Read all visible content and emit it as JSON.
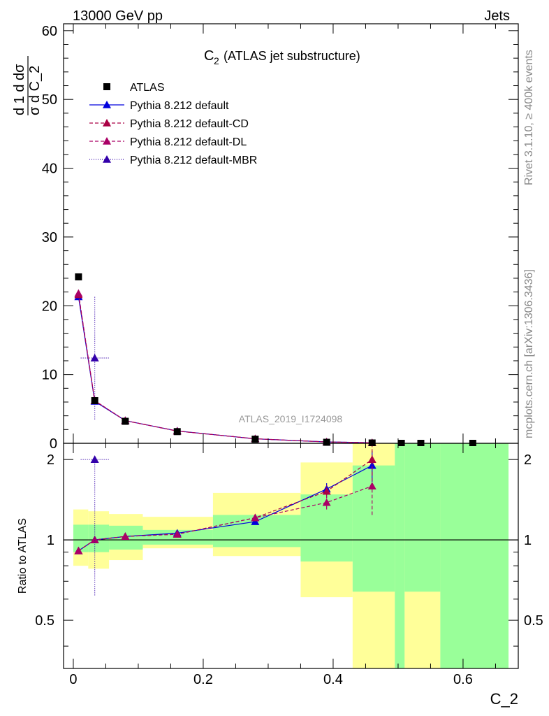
{
  "chart_data": {
    "type": "line",
    "header_left": "13000 GeV pp",
    "header_right": "Jets",
    "title_main": "C",
    "title_sub": "2",
    "title_rest": "(ATLAS jet substructure)",
    "ylabel_top": "1/σ dσ/d C_2",
    "ylabel_bottom": "Ratio to ATLAS",
    "xlabel": "C_2",
    "watermark": "ATLAS_2019_I1724098",
    "side_text_1": "Rivet 3.1.10, ≥ 400k events",
    "side_text_2": "mcplots.cern.ch [arXiv:1306.3436]",
    "xlim": [
      -0.015,
      0.685
    ],
    "ylim_top": [
      0,
      61
    ],
    "ylim_ratio": [
      0.33,
      2.3
    ],
    "x_ticks": [
      0,
      0.2,
      0.4,
      0.6
    ],
    "x_tick_labels": [
      "0",
      "0.2",
      "0.4",
      "0.6"
    ],
    "y_ticks_top": [
      0,
      10,
      20,
      30,
      40,
      50,
      60
    ],
    "y_tick_labels_top": [
      "0",
      "10",
      "20",
      "30",
      "40",
      "50",
      "60"
    ],
    "y_ticks_ratio": [
      0.5,
      1,
      2
    ],
    "y_tick_labels_ratio": [
      "0.5",
      "1",
      "2"
    ],
    "ratio_bands": [
      {
        "x0": 0.0,
        "x1": 0.023,
        "g": [
          0.9,
          1.14
        ],
        "y": [
          0.8,
          1.3
        ]
      },
      {
        "x0": 0.023,
        "x1": 0.055,
        "g": [
          0.9,
          1.14
        ],
        "y": [
          0.78,
          1.28
        ]
      },
      {
        "x0": 0.055,
        "x1": 0.107,
        "g": [
          0.92,
          1.13
        ],
        "y": [
          0.84,
          1.25
        ]
      },
      {
        "x0": 0.107,
        "x1": 0.215,
        "g": [
          0.96,
          1.09
        ],
        "y": [
          0.93,
          1.22
        ]
      },
      {
        "x0": 0.215,
        "x1": 0.35,
        "g": [
          0.94,
          1.24
        ],
        "y": [
          0.87,
          1.5
        ]
      },
      {
        "x0": 0.35,
        "x1": 0.43,
        "g": [
          0.83,
          1.48
        ],
        "y": [
          0.61,
          1.95
        ]
      },
      {
        "x0": 0.43,
        "x1": 0.495,
        "g": [
          0.64,
          1.9
        ],
        "y": [
          0.33,
          2.3
        ]
      },
      {
        "x0": 0.495,
        "x1": 0.51,
        "g": [
          0.33,
          2.3
        ],
        "y": [
          0.33,
          2.3
        ]
      },
      {
        "x0": 0.51,
        "x1": 0.565,
        "g": [
          0.64,
          2.3
        ],
        "y": [
          0.33,
          2.3
        ]
      },
      {
        "x0": 0.565,
        "x1": 0.67,
        "g": [
          0.33,
          2.3
        ],
        "y": [
          0.33,
          2.3
        ]
      }
    ],
    "data_x": [
      0.008,
      0.033,
      0.08,
      0.16,
      0.28,
      0.39,
      0.46,
      0.505,
      0.535,
      0.615
    ],
    "data_y": [
      24.2,
      6.2,
      3.2,
      1.7,
      0.6,
      0.15,
      0.05,
      0.0,
      0.0,
      0.0
    ],
    "series": [
      {
        "name": "Pythia 8.212 default",
        "color": "#0000dd",
        "dash": "",
        "x": [
          0.008,
          0.033,
          0.08,
          0.16,
          0.28,
          0.39,
          0.46
        ],
        "y": [
          21.3,
          6.1,
          3.3,
          1.8,
          0.65,
          0.2,
          0.08
        ],
        "ratio": [
          0.91,
          1.0,
          1.03,
          1.06,
          1.17,
          1.55,
          1.9
        ],
        "ratio_err": [
          0.01,
          0.01,
          0.01,
          0.02,
          0.03,
          0.08,
          0.25
        ]
      },
      {
        "name": "Pythia 8.212 default-CD",
        "color": "#aa0044",
        "dash": "5,3",
        "x": [
          0.008,
          0.033,
          0.08,
          0.16,
          0.28,
          0.39,
          0.46
        ],
        "y": [
          21.6,
          6.2,
          3.3,
          1.78,
          0.66,
          0.2,
          0.09
        ],
        "ratio": [
          0.91,
          1.0,
          1.03,
          1.05,
          1.21,
          1.52,
          2.0
        ],
        "ratio_err": [
          0.01,
          0.01,
          0.01,
          0.02,
          0.03,
          0.08,
          0.25
        ]
      },
      {
        "name": "Pythia 8.212 default-DL",
        "color": "#aa0066",
        "dash": "5,3",
        "x": [
          0.008,
          0.033,
          0.08,
          0.16,
          0.28,
          0.39,
          0.46
        ],
        "y": [
          21.8,
          6.2,
          3.3,
          1.78,
          0.66,
          0.19,
          0.07
        ],
        "ratio": [
          0.91,
          1.0,
          1.03,
          1.05,
          1.21,
          1.38,
          1.59
        ],
        "ratio_err": [
          0.01,
          0.01,
          0.01,
          0.02,
          0.03,
          0.08,
          0.35
        ]
      },
      {
        "name": "Pythia 8.212 default-MBR",
        "color": "#3300aa",
        "dash": "1,2",
        "x": [
          0.033
        ],
        "y": [
          12.4
        ],
        "y_err": [
          8.9
        ],
        "ratio": [
          2.0
        ],
        "ratio_err_lo": [
          1.38
        ],
        "ratio_err_hi": [
          0.05
        ]
      }
    ]
  }
}
